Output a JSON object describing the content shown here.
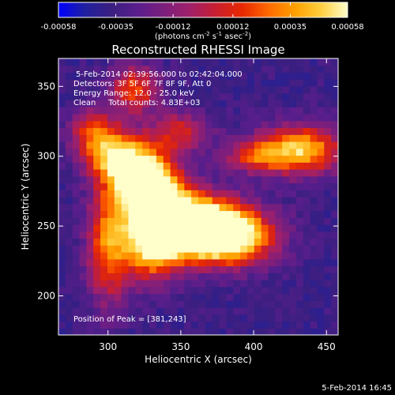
{
  "chart_data": {
    "type": "heatmap",
    "title": "Reconstructed RHESSI Image",
    "xlabel": "Heliocentric X (arcsec)",
    "ylabel": "Heliocentric Y (arcsec)",
    "xlim": [
      266,
      458
    ],
    "ylim": [
      172,
      370
    ],
    "x_ticks": [
      300,
      350,
      400,
      450
    ],
    "y_ticks": [
      200,
      250,
      300,
      350
    ],
    "colorbar": {
      "min": -0.00058,
      "max": 0.00058,
      "tick_values": [
        -0.00058,
        -0.00035,
        -0.00012,
        0.00012,
        0.00035,
        0.00058
      ],
      "tick_labels": [
        "-0.00058",
        "-0.00035",
        "-0.00012",
        "0.00012",
        "0.00035",
        "0.00058"
      ],
      "units_label": "(photons cm",
      "units_exp1": "-2",
      "units_mid": " s",
      "units_exp2": "-1",
      "units_mid2": " asec",
      "units_exp3": "-2",
      "units_close": ")"
    },
    "colormap": [
      "#0000ff",
      "#2020a0",
      "#3a1f80",
      "#5a1e8c",
      "#7c1f7c",
      "#a0206a",
      "#c81e30",
      "#e82800",
      "#ff6a00",
      "#ffa000",
      "#ffd040",
      "#ffffcc"
    ],
    "annotations": [
      "5-Feb-2014 02:39:56.000 to 02:42:04.000",
      "Detectors: 3F 5F 6F 7F 8F 9F, Att 0",
      "Energy Range: 12.0 - 25.0 keV",
      "Clean     Total counts: 4.83E+03"
    ],
    "peak_label": "Position of Peak = [381,243]",
    "peak": [
      381,
      243
    ],
    "sources": [
      {
        "x": 381,
        "y": 243,
        "amp": 1.0,
        "sx": 22,
        "sy": 14
      },
      {
        "x": 358,
        "y": 252,
        "amp": 0.85,
        "sx": 22,
        "sy": 14
      },
      {
        "x": 335,
        "y": 262,
        "amp": 0.8,
        "sx": 16,
        "sy": 22
      },
      {
        "x": 322,
        "y": 285,
        "amp": 0.75,
        "sx": 14,
        "sy": 16
      },
      {
        "x": 305,
        "y": 300,
        "amp": 0.6,
        "sx": 14,
        "sy": 12
      },
      {
        "x": 300,
        "y": 238,
        "amp": 0.55,
        "sx": 10,
        "sy": 30
      },
      {
        "x": 328,
        "y": 232,
        "amp": 0.5,
        "sx": 14,
        "sy": 16
      },
      {
        "x": 432,
        "y": 305,
        "amp": 0.75,
        "sx": 20,
        "sy": 12
      },
      {
        "x": 400,
        "y": 300,
        "amp": 0.4,
        "sx": 14,
        "sy": 8
      },
      {
        "x": 318,
        "y": 348,
        "amp": 0.5,
        "sx": 12,
        "sy": 12
      },
      {
        "x": 290,
        "y": 318,
        "amp": 0.45,
        "sx": 12,
        "sy": 12
      },
      {
        "x": 350,
        "y": 318,
        "amp": 0.4,
        "sx": 14,
        "sy": 10
      }
    ]
  },
  "footer": {
    "date_stamp": "5-Feb-2014 16:45"
  }
}
